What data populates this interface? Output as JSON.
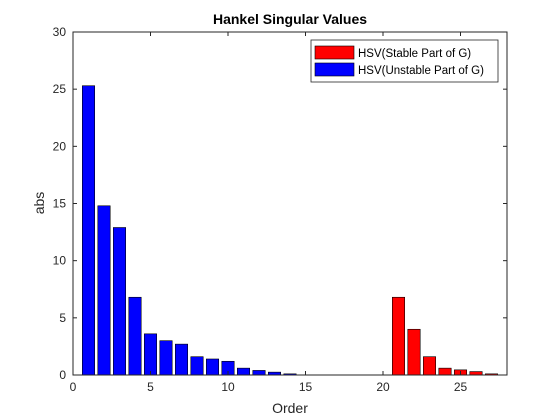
{
  "chart_data": {
    "type": "bar",
    "title": "Hankel Singular Values",
    "xlabel": "Order",
    "ylabel": "abs",
    "xlim": [
      0,
      28
    ],
    "ylim": [
      0,
      30
    ],
    "xticks": [
      0,
      5,
      10,
      15,
      20,
      25
    ],
    "yticks": [
      0,
      5,
      10,
      15,
      20,
      25,
      30
    ],
    "grid": false,
    "legend_position": "top-right",
    "series": [
      {
        "name": "HSV(Stable Part of G)",
        "color": "#ff0000",
        "x": [
          21,
          22,
          23,
          24,
          25,
          26,
          27
        ],
        "values": [
          6.8,
          4.0,
          1.6,
          0.6,
          0.45,
          0.3,
          0.1
        ]
      },
      {
        "name": "HSV(Unstable Part of G)",
        "color": "#0000ff",
        "x": [
          1,
          2,
          3,
          4,
          5,
          6,
          7,
          8,
          9,
          10,
          11,
          12,
          13,
          14
        ],
        "values": [
          25.3,
          14.8,
          12.9,
          6.8,
          3.6,
          3.0,
          2.7,
          1.6,
          1.4,
          1.2,
          0.6,
          0.4,
          0.25,
          0.1
        ]
      }
    ]
  }
}
